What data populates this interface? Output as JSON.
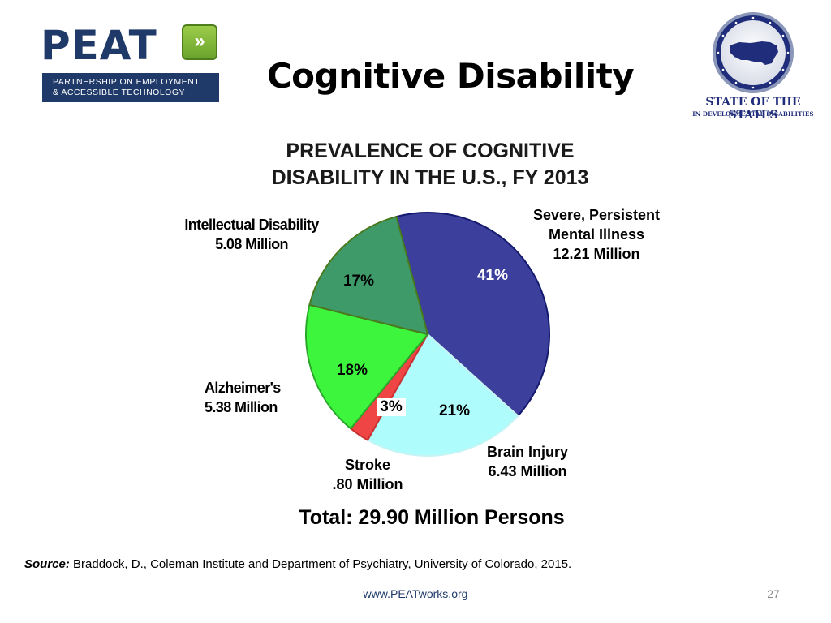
{
  "logos": {
    "peat": {
      "wordmark": "PEAT",
      "arrow_glyph": "»",
      "tagline_line1": "PARTNERSHIP ON EMPLOYMENT",
      "tagline_line2": "& ACCESSIBLE TECHNOLOGY",
      "colors": {
        "navy": "#1f3a68",
        "green": "#7fb93a"
      }
    },
    "seal": {
      "icon": "us-map-seal-icon",
      "name": "STATE OF THE STATES",
      "subtitle": "IN DEVELOPMENTAL DISABILITIES"
    }
  },
  "slide": {
    "title": "Cognitive Disability",
    "total": "Total: 29.90 Million Persons",
    "source_label": "Source:",
    "source_text": " Braddock, D., Coleman Institute and Department of Psychiatry, University of Colorado, 2015.",
    "footer_url": "www.PEATworks.org",
    "page_number": "27"
  },
  "chart_data": {
    "type": "pie",
    "title_line1": "PREVALENCE OF COGNITIVE",
    "title_line2": "DISABILITY IN THE U.S., FY 2013",
    "unit": "Million",
    "slices": [
      {
        "name": "Severe, Persistent Mental Illness",
        "name_line1": "Severe, Persistent",
        "name_line2": "Mental Illness",
        "value": 12.21,
        "value_text": "12.21 Million",
        "percent": "41%",
        "color": "#3c3f9c",
        "stroke": "#141a6e"
      },
      {
        "name": "Brain Injury",
        "name_line1": "Brain Injury",
        "value": 6.43,
        "value_text": "6.43 Million",
        "percent": "21%",
        "color": "#aefcfc",
        "stroke": "#c8f4f4"
      },
      {
        "name": "Stroke",
        "name_line1": "Stroke",
        "value": 0.8,
        "value_text": ".80 Million",
        "percent": "3%",
        "color": "#f04545",
        "stroke": "#c93030"
      },
      {
        "name": "Alzheimer's",
        "name_line1": "Alzheimer's",
        "value": 5.38,
        "value_text": "5.38 Million",
        "percent": "18%",
        "color": "#3ef53e",
        "stroke": "#2aa62a"
      },
      {
        "name": "Intellectual Disability",
        "name_line1": "Intellectual Disability",
        "value": 5.08,
        "value_text": "5.08 Million",
        "percent": "17%",
        "color": "#3f9a6a",
        "stroke": "#4a7a1e"
      }
    ],
    "total_value": 29.9
  }
}
